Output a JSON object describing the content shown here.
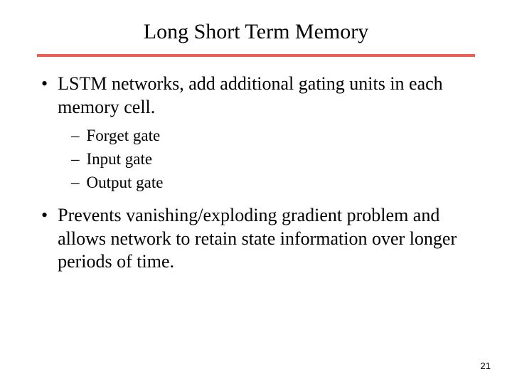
{
  "slide": {
    "title": "Long Short Term Memory",
    "divider_color": "#e96057",
    "bullets": [
      {
        "text": "LSTM networks, add additional gating units in each memory cell.",
        "sub_items": [
          "Forget gate",
          "Input gate",
          "Output gate"
        ]
      },
      {
        "text": "Prevents vanishing/exploding gradient problem and allows network to retain state information over longer periods of time."
      }
    ],
    "page_number": "21"
  },
  "styling": {
    "background_color": "#ffffff",
    "title_fontsize": 30,
    "body_fontsize": 26,
    "sub_fontsize": 23,
    "text_color": "#000000",
    "font_family": "Times New Roman"
  }
}
